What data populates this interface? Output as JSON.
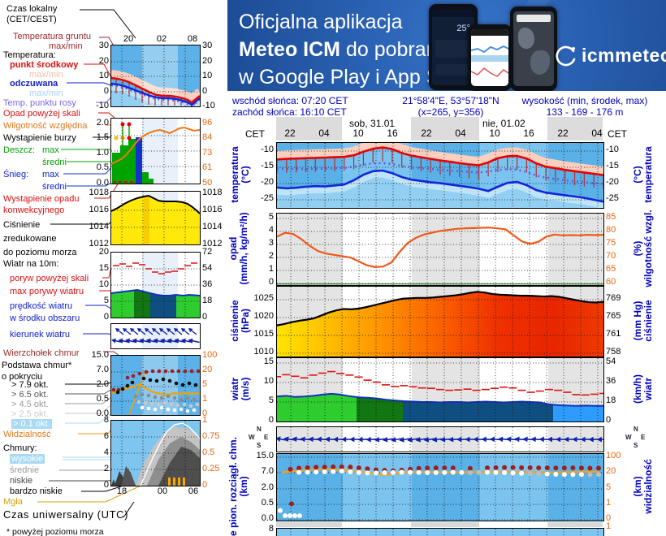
{
  "banner": {
    "line1": "Oficjalna aplikacja",
    "line2_bold": "Meteo ICM",
    "line2_rest": " do pobrania",
    "line3": "w Google Play i App Store",
    "logo_text": "icmmeteo",
    "logo_badge": "M°",
    "phone_temp": "25°"
  },
  "header": {
    "sunrise": "wschód słońca: 07:20 CET",
    "sunset": "zachód słońca: 16:10 CET",
    "coords": "21°58'4\"E, 53°57'18\"N",
    "coords_xy": "(x=265, y=356)",
    "altitude_label": "wysokość (min, środek, max)",
    "altitude_values": "133 - 169 - 176 m"
  },
  "time_axis": {
    "left_label": "CET",
    "right_label": "CET",
    "ticks": [
      "22",
      "04",
      "10",
      "16",
      "22",
      "04",
      "10",
      "16",
      "22",
      "04"
    ],
    "day1": "sob, 31.01",
    "day2": "nie, 01.02"
  },
  "legend": {
    "czas1": "Czas lokalny",
    "czas2": "(CET/CEST)",
    "grunt1": "Temperatura gruntu",
    "grunt2": "max/min",
    "temperatura": "Temperatura:",
    "punkt": "punkt środkowy",
    "maxmin_r": "max/min",
    "odczuwana": "odczuwana",
    "maxmin_b": "max/min",
    "rosy": "Temp. punktu rosy",
    "opad_skali": "Opad powyżej skali",
    "wilg": "Wilgotność względna",
    "burza": "Wystąpienie burzy",
    "deszcz": "Deszcz:",
    "deszcz_max": "max",
    "deszcz_sr": "średni",
    "snieg": "Śnieg:",
    "snieg_max": "max",
    "snieg_sr": "średni",
    "konw1": "Wystąpienie opadu",
    "konw2": "konwekcyjnego",
    "cis1": "Ciśnienie",
    "cis2": "zredukowane",
    "cis3": "do poziomu morza",
    "wiatr10": "Wiatr na 10m:",
    "poryw": "poryw powyżej skali",
    "maxpor": "max porywy wiatru",
    "pred1": "prędkość wiatru",
    "pred2": "w środku obszaru",
    "kier": "kierunek wiatru",
    "wierz": "Wierzchołek chmur",
    "pods1": "Podstawa chmur*",
    "pods2": "o pokryciu",
    "okt79": "> 7.9 okt.",
    "okt65": "> 6.5 okt.",
    "okt45": "> 4.5 okt.",
    "okt25": "> 2.5 okt.",
    "okt01": "> 0.1 okt.",
    "widz": "Widzialność",
    "chmury": "Chmury:",
    "wysokie": "wysokie",
    "srednie": "średnie",
    "niskie": "niskie",
    "bniskie": "bardzo niskie",
    "mgla": "Mgła",
    "utc": "Czas uniwersalny (UTC)",
    "foot": "* powyżej poziomu morza"
  },
  "legend_ticks": {
    "mc1_top": [
      "20",
      "02",
      "08"
    ],
    "mc1": [
      "30",
      "20",
      "10",
      "0",
      "-10"
    ],
    "mc2_left": [
      "2.0",
      "1.5",
      "1.0",
      "0.5",
      "0.0"
    ],
    "mc2_right": [
      "96",
      "84",
      "73",
      "61",
      "50"
    ],
    "mc3": [
      "1018",
      "1016",
      "1014",
      "1012"
    ],
    "mc4_left": [
      "20",
      "15",
      "10",
      "5",
      "0"
    ],
    "mc4_right": [
      "72",
      "54",
      "36",
      "18",
      "0"
    ],
    "mc6_left": [
      "15.0",
      "7.0",
      "2.0",
      "0.5",
      "0.0"
    ],
    "mc6_right": [
      "100",
      "20",
      "5",
      "1",
      "0"
    ],
    "mc7_left": [
      "8",
      "6",
      "4",
      "2",
      "0"
    ],
    "mc7_right": [
      "1",
      "0.75",
      "0.5",
      "0.25",
      "0"
    ],
    "bottom": [
      "18",
      "00",
      "06"
    ]
  },
  "chart_data": {
    "temperature": {
      "type": "line",
      "left_title": [
        "temperatura",
        "(°C)"
      ],
      "right_title": [
        "(°C)",
        "temperatura"
      ],
      "left_ticks": [
        "-10",
        "-15",
        "-20",
        "-25"
      ],
      "right_ticks": [
        "-10",
        "-15",
        "-20",
        "-25"
      ],
      "ylim": [
        -27.5,
        -7.5
      ],
      "temp": [
        -12.6,
        -12.4,
        -12.3,
        -12.2,
        -12.1,
        -12.0,
        -11.9,
        -11.8,
        -11.3,
        -10.2,
        -9.3,
        -8.9,
        -9.4,
        -10.6,
        -11.4,
        -11.9,
        -12.4,
        -12.9,
        -13.3,
        -13.7,
        -14.1,
        -14.4,
        -13.5,
        -12.2,
        -11.6,
        -11.5,
        -12.3,
        -13.8,
        -14.8,
        -15.3,
        -15.8,
        -16.2,
        -16.6,
        -17.0,
        -17.4
      ],
      "feels": [
        -21.2,
        -21.5,
        -21.3,
        -21.0,
        -20.8,
        -20.9,
        -20.6,
        -20.3,
        -19.0,
        -17.3,
        -16.2,
        -16.0,
        -16.8,
        -18.0,
        -18.8,
        -19.2,
        -19.6,
        -19.9,
        -20.3,
        -20.7,
        -21.1,
        -21.6,
        -22.3,
        -21.0,
        -19.8,
        -19.5,
        -20.5,
        -22.0,
        -22.8,
        -23.2,
        -23.6,
        -24.0,
        -24.4,
        -25.0,
        -25.6
      ],
      "dew": [
        -15.4,
        -15.5,
        -15.5,
        -15.6,
        -15.5,
        -15.4,
        -15.3,
        -15.2,
        -14.8,
        -14.2,
        -13.8,
        -13.7,
        -14.0,
        -14.6,
        -15.0,
        -15.3,
        -15.5,
        -15.8,
        -16.0,
        -16.2,
        -16.4,
        -16.6,
        -16.3,
        -15.8,
        -15.6,
        -15.7,
        -16.5,
        -17.5,
        -18.2,
        -18.6,
        -19.0,
        -19.3,
        -19.6,
        -19.9,
        -20.1
      ]
    },
    "humidity": {
      "type": "line",
      "left_title": [
        "opad",
        "(mm/h, kg/m²/h)"
      ],
      "right_title": [
        "(%)",
        "wilgotność wzgl."
      ],
      "left_ticks": [
        "5",
        "4",
        "3",
        "2",
        "1",
        "0"
      ],
      "right_ticks": [
        "85",
        "80",
        "75",
        "70",
        "65",
        "60"
      ],
      "values": [
        78,
        79.5,
        79,
        77,
        74.5,
        72.5,
        71.5,
        71,
        70.5,
        70,
        68.5,
        67,
        66.3,
        66.5,
        68,
        72,
        75.5,
        77.5,
        78.8,
        79.5,
        80.2,
        80.6,
        81,
        81.2,
        81.3,
        81.4,
        81.5,
        81.2,
        80.8,
        78.5,
        76.2,
        75.2,
        76,
        78,
        78.8,
        78.5,
        78.6,
        78.5,
        78.7,
        78.6,
        78.7
      ]
    },
    "pressure": {
      "type": "area",
      "left_title": [
        "ciśnienie",
        "(hPa)"
      ],
      "right_title": [
        "(mm Hg)",
        "ciśnienie"
      ],
      "left_ticks": [
        "1025",
        "1020",
        "1015",
        "1010"
      ],
      "right_ticks": [
        "769",
        "765",
        "761",
        "758"
      ],
      "values": [
        1017.8,
        1018.2,
        1018.7,
        1019.1,
        1019.4,
        1019.8,
        1020.6,
        1021.4,
        1022.0,
        1022.4,
        1022.3,
        1022.5,
        1022.9,
        1023.4,
        1023.9,
        1024.4,
        1024.9,
        1025.3,
        1025.4,
        1025.5,
        1025.5,
        1025.6,
        1025.8,
        1026.0,
        1026.2,
        1026.5,
        1026.9,
        1027.2,
        1027.0,
        1026.6,
        1026.4,
        1026.3,
        1026.2,
        1026.1,
        1026.1,
        1026.0,
        1025.9,
        1026.0,
        1025.8,
        1025.4,
        1025.0,
        1024.6,
        1024.3,
        1024.2,
        1024.4
      ]
    },
    "wind": {
      "type": "area",
      "left_title": [
        "wiatr",
        "(m/s)"
      ],
      "right_title": [
        "(km/h)",
        "wiatr"
      ],
      "left_ticks": [
        "15",
        "10",
        "5",
        "0"
      ],
      "right_ticks": [
        "54",
        "36",
        "18",
        "0"
      ],
      "speed": [
        6.4,
        6.6,
        6.3,
        6.4,
        6.6,
        6.9,
        7.1,
        6.9,
        6.5,
        6.2,
        6.1,
        5.9,
        5.6,
        5.4,
        5.2,
        5.1,
        5.0,
        5.0,
        4.9,
        5.0,
        5.0,
        4.9,
        5.0,
        5.1,
        5.0,
        4.9,
        5.0,
        5.1,
        5.0,
        4.9,
        4.4,
        4.2,
        4.1,
        4.0,
        4.1,
        4.0,
        4.0
      ],
      "gusts": [
        11.5,
        12.0,
        11.6,
        11.2,
        11.9,
        12.4,
        12.8,
        12.3,
        11.9,
        11.4,
        10.6,
        10.1,
        9.4,
        9.0,
        9.2,
        8.9,
        8.6,
        8.5,
        8.2,
        8.0,
        8.1,
        8.3,
        8.0,
        8.2,
        8.5,
        8.8,
        8.6,
        8.0,
        7.5,
        7.8,
        8.2,
        8.0,
        7.5,
        6.9,
        6.8,
        7.0,
        7.2
      ],
      "segment_colors": [
        "#2FCC2F",
        "#127612",
        "#0F4E81",
        "#2E9BFF"
      ],
      "segment_bounds": [
        0,
        98,
        155,
        340,
        402
      ]
    },
    "wind_direction": {
      "type": "vector",
      "angles": [
        190,
        188,
        186,
        185,
        184,
        183,
        182,
        181,
        180,
        180,
        178,
        176,
        174,
        172,
        171,
        170,
        170,
        171,
        172,
        173,
        175,
        176,
        178,
        180,
        181,
        182,
        183,
        184,
        185,
        185,
        184,
        183,
        182,
        181,
        180,
        180,
        180,
        179,
        178,
        178
      ]
    },
    "clouds": {
      "type": "scatter",
      "left_title": [
        "e  pion. rozciągł. chm.",
        "(km)"
      ],
      "right_title": [
        "(km)",
        "widzialność"
      ],
      "left_ticks": [
        "15.0",
        "7.0",
        "2.0",
        "0.5",
        "0.0"
      ],
      "right_ticks": [
        "100",
        "20",
        "5",
        "1",
        "0"
      ],
      "tops_km": [
        null,
        8.8,
        9.3,
        9.6,
        9.8,
        9.9,
        10,
        10,
        9.9,
        9.5,
        9.0,
        8.5,
        8.2,
        8.0,
        8.3,
        8.8,
        9.2,
        9.4,
        9.5,
        9.5,
        9.4,
        null,
        9.2,
        null,
        9.5,
        9.6,
        9.7,
        9.7,
        9.6,
        9.6,
        9.5,
        9.5,
        9.4,
        9.4,
        9.5,
        9.4,
        9.3,
        9.3
      ],
      "bases_km": [
        null,
        null,
        7.2,
        7.2,
        7.3,
        7.4,
        7.6,
        7.8,
        7.4,
        7.1,
        6.9,
        6.9,
        7.0,
        7.1,
        7.2,
        7.2,
        7.1,
        7.0,
        7.0,
        7.1,
        7.2,
        7.1,
        7.0,
        7.1,
        7.2,
        7.1,
        7.0,
        6.9,
        6.8,
        6.8,
        6.7,
        6.6,
        6.5,
        6.4,
        6.4,
        6.4,
        6.4,
        6.4
      ],
      "gray_idx": [
        22,
        23,
        29,
        30,
        36,
        37
      ],
      "visibility_km": [
        22,
        26,
        30,
        34,
        36,
        37,
        36,
        33,
        28,
        24,
        21,
        19,
        18,
        19,
        21,
        22,
        23,
        23,
        23,
        22,
        22,
        22,
        23,
        23,
        23,
        23,
        23,
        23,
        23,
        23,
        22,
        21,
        21,
        22,
        23,
        24,
        25,
        24
      ],
      "specials": [
        {
          "x": 18,
          "v": 0.55,
          "c": "#9E1F1F"
        },
        {
          "x": 4,
          "v": 0.3,
          "c": "#FFFFFF"
        },
        {
          "x": 10,
          "v": 0.13,
          "c": "#FFFFFF"
        },
        {
          "x": 16,
          "v": 0.13,
          "c": "#FFFFFF"
        },
        {
          "x": 22,
          "v": 0.13,
          "c": "#FFFFFF"
        },
        {
          "x": 28,
          "v": 0.13,
          "c": "#FFFFFF"
        }
      ]
    },
    "bottom": {
      "left_ticks": [
        "8"
      ],
      "right_ticks": [
        "1"
      ]
    }
  }
}
